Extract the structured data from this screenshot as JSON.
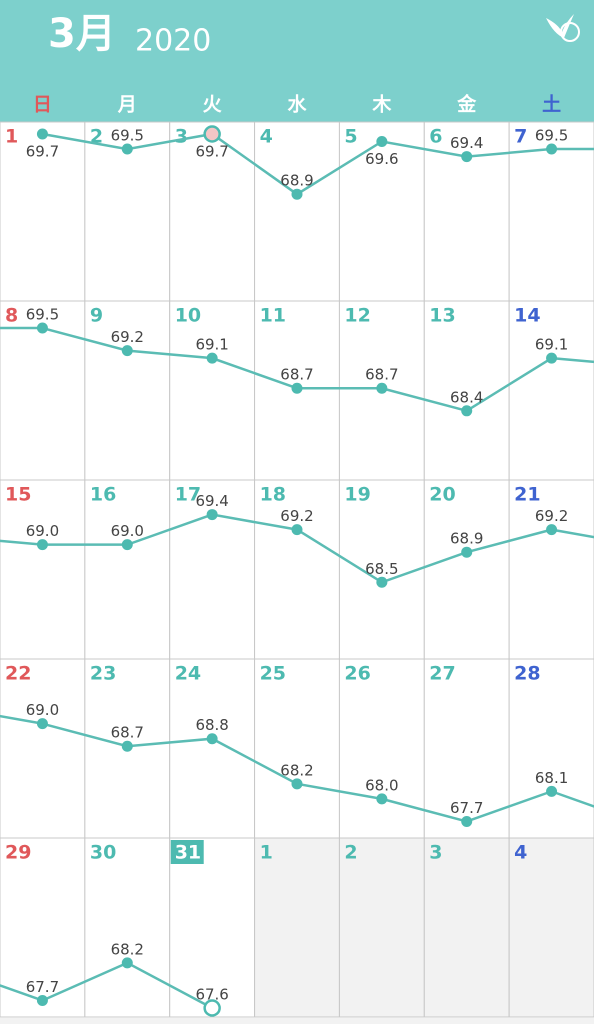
{
  "header": {
    "month": "3月",
    "year": "2020"
  },
  "weekdays": [
    "日",
    "月",
    "火",
    "水",
    "木",
    "金",
    "土"
  ],
  "weeks": [
    {
      "days": [
        1,
        2,
        3,
        4,
        5,
        6,
        7
      ],
      "values": [
        "69.7",
        "69.5",
        "69.7",
        "68.9",
        "69.6",
        "69.4",
        "69.5"
      ]
    },
    {
      "days": [
        8,
        9,
        10,
        11,
        12,
        13,
        14
      ],
      "values": [
        "69.5",
        "69.2",
        "69.1",
        "68.7",
        "68.7",
        "68.4",
        "69.1"
      ]
    },
    {
      "days": [
        15,
        16,
        17,
        18,
        19,
        20,
        21
      ],
      "values": [
        "69.0",
        "69.0",
        "69.4",
        "69.2",
        "68.5",
        "68.9",
        "69.2"
      ]
    },
    {
      "days": [
        22,
        23,
        24,
        25,
        26,
        27,
        28
      ],
      "values": [
        "69.0",
        "68.7",
        "68.8",
        "68.2",
        "68.0",
        "67.7",
        "68.1"
      ]
    },
    {
      "days": [
        29,
        30,
        31,
        1,
        2,
        3,
        4
      ],
      "values": [
        "67.7",
        "68.2",
        "67.6",
        null,
        null,
        null,
        null
      ]
    }
  ]
}
